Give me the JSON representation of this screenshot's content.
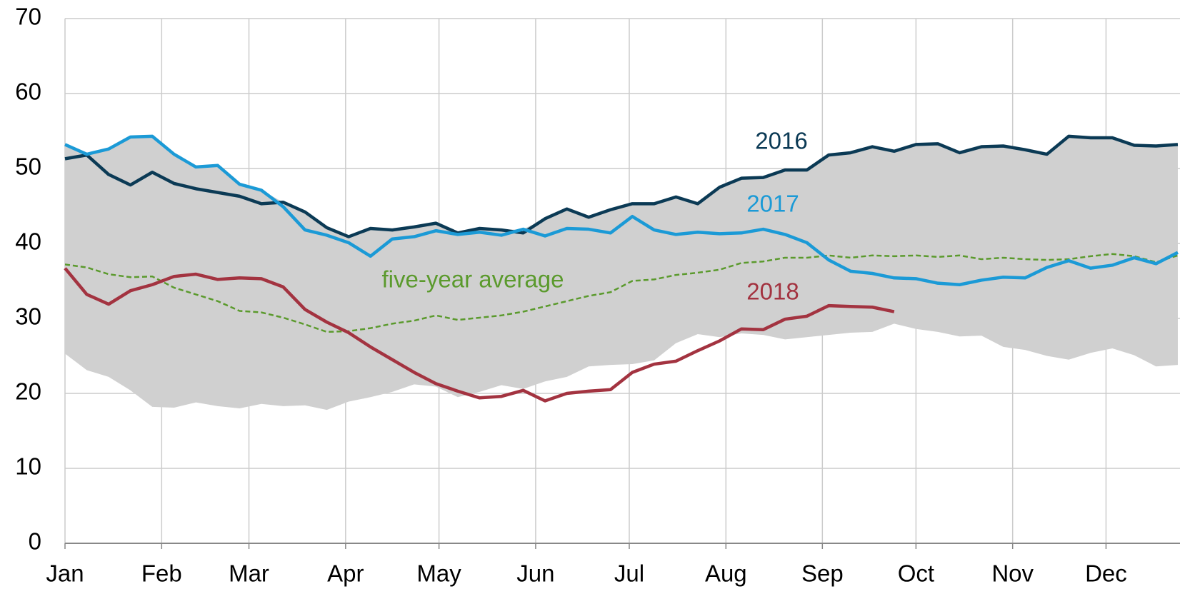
{
  "chart_data": {
    "type": "line",
    "x": [
      0,
      1,
      2,
      3,
      4,
      5,
      6,
      7,
      8,
      9,
      10,
      11,
      12,
      13,
      14,
      15,
      16,
      17,
      18,
      19,
      20,
      21,
      22,
      23,
      24,
      25,
      26,
      27,
      28,
      29,
      30,
      31,
      32,
      33,
      34,
      35,
      36,
      37,
      38,
      39,
      40,
      41,
      42,
      43,
      44,
      45,
      46,
      47,
      48,
      49,
      50,
      51
    ],
    "xlim": [
      0,
      51.1
    ],
    "xticks": [
      {
        "value": 0,
        "label": "Jan"
      },
      {
        "value": 4.43,
        "label": "Feb"
      },
      {
        "value": 8.43,
        "label": "Mar"
      },
      {
        "value": 12.86,
        "label": "Apr"
      },
      {
        "value": 17.14,
        "label": "May"
      },
      {
        "value": 21.57,
        "label": "Jun"
      },
      {
        "value": 25.86,
        "label": "Jul"
      },
      {
        "value": 30.29,
        "label": "Aug"
      },
      {
        "value": 34.71,
        "label": "Sep"
      },
      {
        "value": 39,
        "label": "Oct"
      },
      {
        "value": 43.43,
        "label": "Nov"
      },
      {
        "value": 47.71,
        "label": "Dec"
      }
    ],
    "ylim": [
      0,
      70
    ],
    "yticks": [
      0,
      10,
      20,
      30,
      40,
      50,
      60,
      70
    ],
    "grid": true,
    "range": {
      "color": "#d0d0d0",
      "low": [
        25.3,
        23.1,
        22.2,
        20.4,
        18.2,
        18.1,
        18.8,
        18.3,
        18.0,
        18.6,
        18.3,
        18.4,
        17.8,
        18.9,
        19.5,
        20.2,
        21.2,
        20.9,
        19.5,
        20.2,
        21.1,
        20.6,
        21.6,
        22.2,
        23.6,
        23.8,
        23.9,
        24.4,
        26.7,
        27.9,
        27.5,
        28.0,
        27.8,
        27.2,
        27.5,
        27.8,
        28.1,
        28.2,
        29.3,
        28.6,
        28.2,
        27.6,
        27.7,
        26.2,
        25.8,
        25.0,
        24.5,
        25.4,
        26.0,
        25.1,
        23.6,
        23.8
      ],
      "high": [
        53.2,
        51.9,
        52.6,
        54.2,
        54.3,
        51.9,
        50.2,
        50.4,
        47.9,
        47.1,
        45.5,
        44.2,
        42.1,
        40.9,
        42.0,
        41.8,
        42.2,
        42.7,
        41.4,
        42.0,
        41.8,
        41.9,
        43.3,
        44.6,
        43.5,
        44.5,
        45.3,
        45.3,
        46.2,
        45.3,
        47.5,
        48.7,
        48.8,
        49.8,
        49.8,
        51.8,
        52.1,
        52.9,
        52.3,
        53.2,
        53.3,
        52.1,
        52.9,
        53.0,
        52.5,
        51.9,
        54.3,
        54.1,
        54.1,
        53.1,
        53.0,
        53.2
      ]
    },
    "series": [
      {
        "name": "five-year average",
        "color": "#5b9a2d",
        "dashed": true,
        "values": [
          37.2,
          36.8,
          35.9,
          35.5,
          35.6,
          34.1,
          33.2,
          32.3,
          31.0,
          30.8,
          30.1,
          29.2,
          28.2,
          28.3,
          28.7,
          29.3,
          29.7,
          30.4,
          29.8,
          30.1,
          30.4,
          30.9,
          31.6,
          32.3,
          33.0,
          33.5,
          35.0,
          35.2,
          35.8,
          36.1,
          36.5,
          37.4,
          37.6,
          38.1,
          38.1,
          38.4,
          38.1,
          38.4,
          38.3,
          38.4,
          38.2,
          38.4,
          37.9,
          38.1,
          37.9,
          37.8,
          37.9,
          38.3,
          38.6,
          38.3,
          37.5,
          38.4
        ]
      },
      {
        "name": "2016",
        "color": "#0b3a55",
        "values": [
          51.3,
          51.8,
          49.2,
          47.8,
          49.5,
          48.0,
          47.3,
          46.8,
          46.3,
          45.3,
          45.5,
          44.2,
          42.1,
          40.9,
          42.0,
          41.8,
          42.2,
          42.7,
          41.4,
          42.0,
          41.8,
          41.4,
          43.3,
          44.6,
          43.5,
          44.5,
          45.3,
          45.3,
          46.2,
          45.3,
          47.5,
          48.7,
          48.8,
          49.8,
          49.8,
          51.8,
          52.1,
          52.9,
          52.3,
          53.2,
          53.3,
          52.1,
          52.9,
          53.0,
          52.5,
          51.9,
          54.3,
          54.1,
          54.1,
          53.1,
          53.0,
          53.2
        ]
      },
      {
        "name": "2017",
        "color": "#1b9ad6",
        "values": [
          53.2,
          51.9,
          52.6,
          54.2,
          54.3,
          51.9,
          50.2,
          50.4,
          47.9,
          47.1,
          44.9,
          41.8,
          41.1,
          40.1,
          38.3,
          40.6,
          40.9,
          41.7,
          41.2,
          41.5,
          41.1,
          41.9,
          41.0,
          42.0,
          41.9,
          41.4,
          43.6,
          41.8,
          41.2,
          41.5,
          41.3,
          41.4,
          41.9,
          41.2,
          40.1,
          37.8,
          36.3,
          36.0,
          35.4,
          35.3,
          34.7,
          34.5,
          35.1,
          35.5,
          35.4,
          36.8,
          37.7,
          36.7,
          37.1,
          38.1,
          37.3,
          38.8
        ]
      },
      {
        "name": "2018",
        "color": "#a33340",
        "values": [
          36.7,
          33.2,
          31.9,
          33.7,
          34.5,
          35.6,
          35.9,
          35.2,
          35.4,
          35.3,
          34.2,
          31.2,
          29.5,
          28.1,
          26.2,
          24.5,
          22.8,
          21.3,
          20.3,
          19.4,
          19.6,
          20.4,
          19.0,
          20.0,
          20.3,
          20.5,
          22.8,
          23.9,
          24.3,
          25.7,
          27.0,
          28.6,
          28.5,
          29.9,
          30.3,
          31.7,
          31.6,
          31.5,
          30.9,
          null,
          null,
          null,
          null,
          null,
          null,
          null,
          null,
          null,
          null,
          null,
          null,
          null
        ]
      }
    ]
  }
}
